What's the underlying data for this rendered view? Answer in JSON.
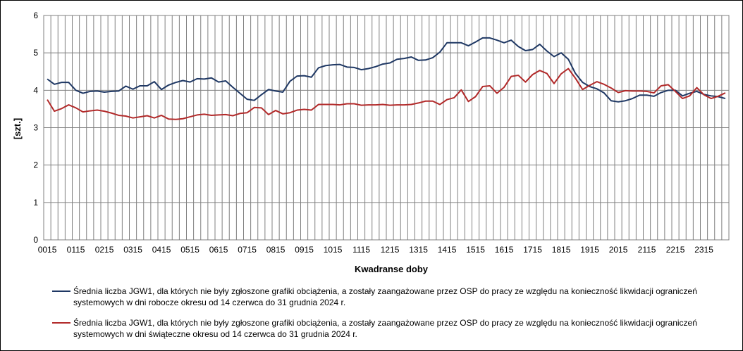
{
  "chart_data": {
    "type": "line",
    "xlabel": "Kwadranse doby",
    "ylabel": "[szt.]",
    "ylim": [
      0,
      6
    ],
    "yticks": [
      0,
      1,
      2,
      3,
      4,
      5,
      6
    ],
    "x_tick_labels": [
      "0015",
      "0115",
      "0215",
      "0315",
      "0415",
      "0515",
      "0615",
      "0715",
      "0815",
      "0915",
      "1015",
      "1115",
      "1215",
      "1315",
      "1415",
      "1515",
      "1615",
      "1715",
      "1815",
      "1915",
      "2015",
      "2115",
      "2215",
      "2315"
    ],
    "grid": true,
    "legend_position": "bottom",
    "series": [
      {
        "name": "Średnia liczba JGW1, dla których nie były zgłoszone grafiki obciążenia, a zostały zaangażowane przez OSP do pracy ze względu na konieczność likwidacji ograniczeń systemowych w dni robocze okresu od 14 czerwca do 31 grudnia 2024 r.",
        "color": "#1f3864",
        "values": [
          4.3,
          4.16,
          4.21,
          4.21,
          4.0,
          3.92,
          3.97,
          3.98,
          3.95,
          3.97,
          3.98,
          4.11,
          4.03,
          4.12,
          4.12,
          4.23,
          4.02,
          4.14,
          4.21,
          4.26,
          4.22,
          4.31,
          4.3,
          4.33,
          4.22,
          4.25,
          4.08,
          3.92,
          3.76,
          3.73,
          3.88,
          4.02,
          3.98,
          3.95,
          4.24,
          4.38,
          4.39,
          4.35,
          4.6,
          4.66,
          4.68,
          4.69,
          4.62,
          4.61,
          4.55,
          4.58,
          4.63,
          4.7,
          4.73,
          4.83,
          4.85,
          4.89,
          4.8,
          4.81,
          4.87,
          5.02,
          5.27,
          5.27,
          5.27,
          5.19,
          5.29,
          5.4,
          5.4,
          5.34,
          5.27,
          5.34,
          5.17,
          5.06,
          5.09,
          5.23,
          5.05,
          4.9,
          5.0,
          4.83,
          4.45,
          4.21,
          4.1,
          4.04,
          3.93,
          3.72,
          3.69,
          3.72,
          3.78,
          3.87,
          3.87,
          3.84,
          3.94,
          4.0,
          4.0,
          3.85,
          3.92,
          3.97,
          3.89,
          3.85,
          3.83,
          3.78
        ]
      },
      {
        "name": "Średnia liczba JGW1, dla których nie były zgłoszone grafiki obciążenia, a zostały zaangażowane przez OSP do pracy ze względu na konieczność likwidacji ograniczeń systemowych w dni świąteczne okresu od 14 czerwca do 31 grudnia 2024 r.",
        "color": "#b22a2a",
        "values": [
          3.75,
          3.44,
          3.51,
          3.61,
          3.53,
          3.42,
          3.45,
          3.47,
          3.44,
          3.39,
          3.33,
          3.31,
          3.26,
          3.29,
          3.32,
          3.26,
          3.33,
          3.23,
          3.22,
          3.24,
          3.29,
          3.34,
          3.36,
          3.33,
          3.34,
          3.35,
          3.32,
          3.38,
          3.4,
          3.54,
          3.53,
          3.35,
          3.46,
          3.37,
          3.4,
          3.47,
          3.49,
          3.47,
          3.62,
          3.62,
          3.62,
          3.61,
          3.64,
          3.64,
          3.6,
          3.61,
          3.61,
          3.62,
          3.6,
          3.61,
          3.61,
          3.62,
          3.66,
          3.71,
          3.71,
          3.62,
          3.75,
          3.8,
          4.01,
          3.7,
          3.83,
          4.1,
          4.12,
          3.92,
          4.08,
          4.37,
          4.4,
          4.22,
          4.42,
          4.53,
          4.45,
          4.18,
          4.44,
          4.58,
          4.32,
          4.02,
          4.13,
          4.23,
          4.16,
          4.06,
          3.94,
          3.99,
          3.98,
          3.98,
          3.97,
          3.93,
          4.12,
          4.15,
          3.97,
          3.78,
          3.85,
          4.07,
          3.88,
          3.78,
          3.84,
          3.93
        ]
      }
    ]
  }
}
